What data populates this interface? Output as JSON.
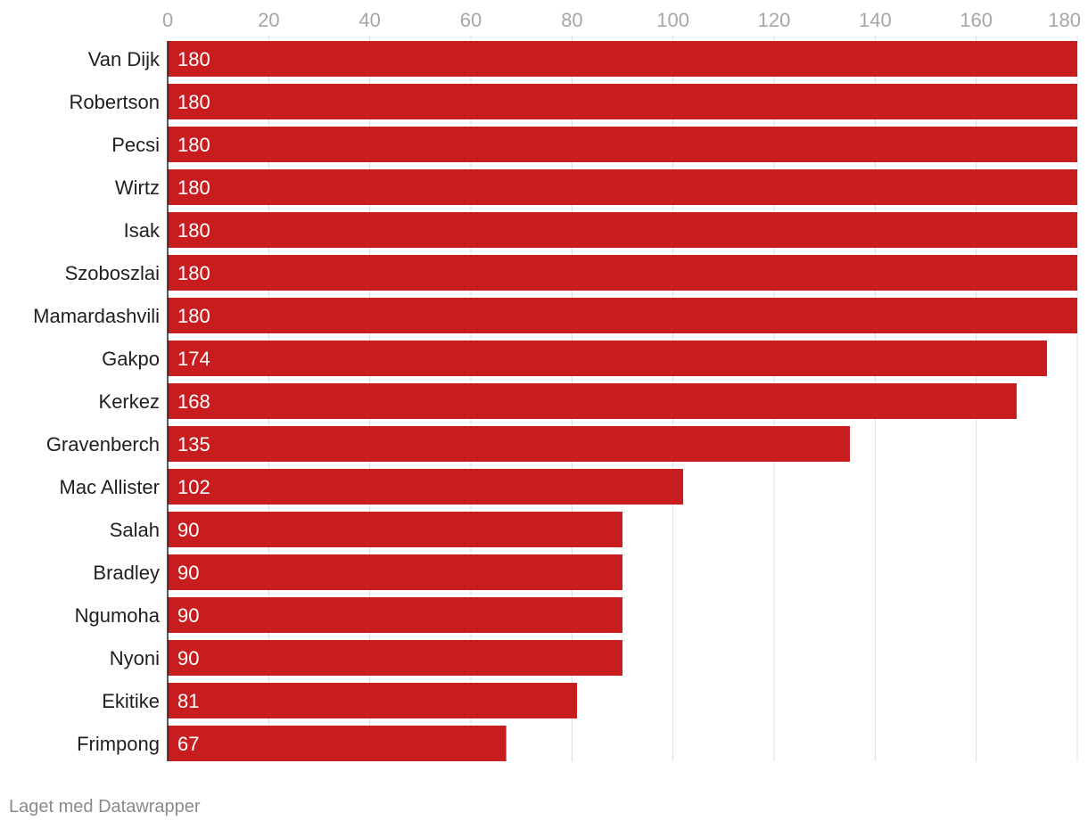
{
  "chart_data": {
    "type": "bar",
    "orientation": "horizontal",
    "title": "",
    "xlabel": "",
    "ylabel": "",
    "xlim": [
      0,
      180
    ],
    "ticks": [
      0,
      20,
      40,
      60,
      80,
      100,
      120,
      140,
      160,
      180
    ],
    "tick_position": "top",
    "grid": true,
    "categories": [
      "Van Dijk",
      "Robertson",
      "Pecsi",
      "Wirtz",
      "Isak",
      "Szoboszlai",
      "Mamardashvili",
      "Gakpo",
      "Kerkez",
      "Gravenberch",
      "Mac Allister",
      "Salah",
      "Bradley",
      "Ngumoha",
      "Nyoni",
      "Ekitike",
      "Frimpong"
    ],
    "values": [
      180,
      180,
      180,
      180,
      180,
      180,
      180,
      174,
      168,
      135,
      102,
      90,
      90,
      90,
      90,
      81,
      67
    ],
    "bar_color": "#c81d1f",
    "data_labels": "inside-start"
  },
  "footer": {
    "credit": "Laget med Datawrapper"
  }
}
